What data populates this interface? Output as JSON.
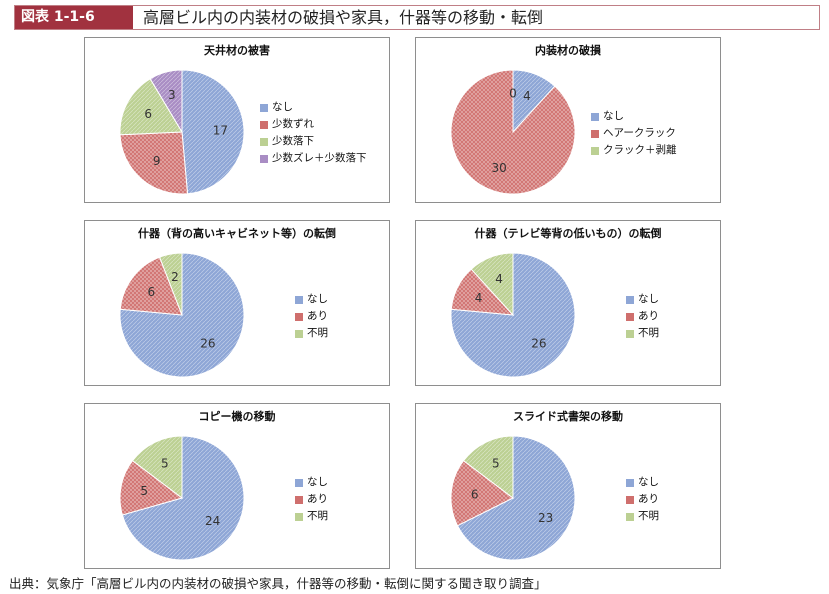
{
  "header": {
    "badge": "図表 1-1-6",
    "title": "高層ビル内の内装材の破損や家具，什器等の移動・転倒"
  },
  "footer": "出典：気象庁「高層ビル内の内装材の破損や家具，什器等の移動・転倒に関する聞き取り調査」",
  "colors": {
    "blue": "#8ea6d6",
    "red": "#cf6f6d",
    "green": "#bcd093",
    "purple": "#a98dc4"
  },
  "chart_data": [
    {
      "type": "pie",
      "title": "天井材の被害",
      "categories": [
        "なし",
        "少数ずれ",
        "少数落下",
        "少数ズレ＋少数落下"
      ],
      "values": [
        17,
        9,
        6,
        3
      ],
      "colors": [
        "#8ea6d6",
        "#cf6f6d",
        "#bcd093",
        "#a98dc4"
      ],
      "legend": "right"
    },
    {
      "type": "pie",
      "title": "内装材の破損",
      "categories": [
        "なし",
        "ヘアークラック",
        "クラック＋剥離"
      ],
      "values": [
        4,
        30,
        0
      ],
      "colors": [
        "#8ea6d6",
        "#cf6f6d",
        "#bcd093"
      ],
      "legend": "right"
    },
    {
      "type": "pie",
      "title": "什器（背の高いキャビネット等）の転倒",
      "categories": [
        "なし",
        "あり",
        "不明"
      ],
      "values": [
        26,
        6,
        2
      ],
      "colors": [
        "#8ea6d6",
        "#cf6f6d",
        "#bcd093"
      ],
      "legend": "right"
    },
    {
      "type": "pie",
      "title": "什器（テレビ等背の低いもの）の転倒",
      "categories": [
        "なし",
        "あり",
        "不明"
      ],
      "values": [
        26,
        4,
        4
      ],
      "colors": [
        "#8ea6d6",
        "#cf6f6d",
        "#bcd093"
      ],
      "legend": "right"
    },
    {
      "type": "pie",
      "title": "コピー機の移動",
      "categories": [
        "なし",
        "あり",
        "不明"
      ],
      "values": [
        24,
        5,
        5
      ],
      "colors": [
        "#8ea6d6",
        "#cf6f6d",
        "#bcd093"
      ],
      "legend": "right"
    },
    {
      "type": "pie",
      "title": "スライド式書架の移動",
      "categories": [
        "なし",
        "あり",
        "不明"
      ],
      "values": [
        23,
        6,
        5
      ],
      "colors": [
        "#8ea6d6",
        "#cf6f6d",
        "#bcd093"
      ],
      "legend": "right"
    }
  ]
}
